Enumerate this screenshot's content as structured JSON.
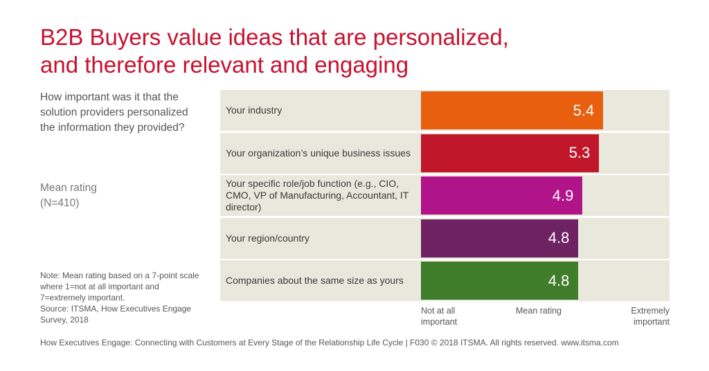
{
  "title_line1": "B2B Buyers value ideas that are personalized,",
  "title_line2": "and therefore relevant and engaging",
  "question": "How important was it that the solution providers personalized the information they provided?",
  "metric": "Mean rating",
  "sample": "(N=410)",
  "note": "Note: Mean rating based on a 7-point scale where 1=not at all important and 7=extremely important.",
  "source": "Source: ITSMA, How Executives Engage Survey, 2018",
  "footer": "How Executives Engage: Connecting with Customers at Every Stage of the Relationship Life Cycle | F030 © 2018 ITSMA. All rights reserved. www.itsma.com",
  "chart_data": {
    "type": "bar",
    "orientation": "horizontal",
    "categories": [
      "Your industry",
      "Your organization’s unique business issues",
      "Your specific role/job function (e.g., CIO, CMO, VP of Manufacturing, Accountant, IT director)",
      "Your region/country",
      "Companies about the same size as yours"
    ],
    "values": [
      5.4,
      5.3,
      4.9,
      4.8,
      4.8
    ],
    "value_labels": [
      "5.4",
      "5.3",
      "4.9",
      "4.8",
      "4.8"
    ],
    "colors": [
      "#e8600f",
      "#c0182a",
      "#b01488",
      "#6e2262",
      "#3f7d2b"
    ],
    "xlim": [
      1,
      7
    ],
    "axis_labels": {
      "min": "Not at all important",
      "mid": "Mean rating",
      "max": "Extremely important"
    }
  },
  "colors": {
    "title": "#c8102e",
    "row_background": "#e8e8dc"
  }
}
